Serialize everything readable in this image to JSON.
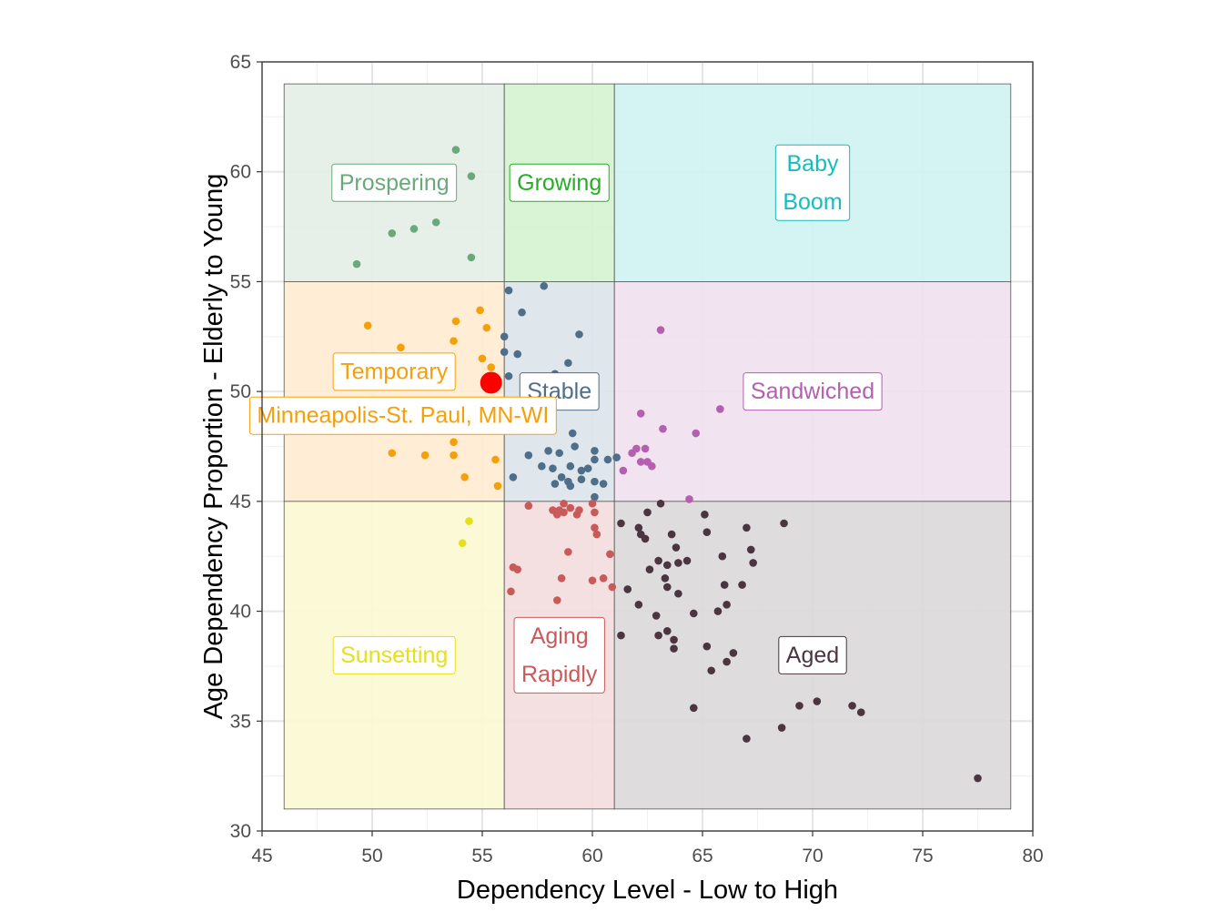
{
  "chart_data": {
    "type": "scatter",
    "title": "",
    "xlabel": "Dependency Level - Low to High",
    "ylabel": "Age Dependency Proportion - Elderly to Young",
    "xlim": [
      45,
      80
    ],
    "ylim": [
      30,
      65
    ],
    "xticks": [
      "45",
      "50",
      "55",
      "60",
      "65",
      "70",
      "75",
      "80"
    ],
    "yticks": [
      "30",
      "35",
      "40",
      "45",
      "50",
      "55",
      "60",
      "65"
    ],
    "grid": true,
    "legend": "none",
    "regions": [
      {
        "name": "Prospering",
        "label_lines": [
          "Prospering"
        ],
        "x0": 46,
        "x1": 56,
        "y0": 55,
        "y1": 64,
        "fill": "#e3ede5",
        "color": "#6aaa7a",
        "label_x": 51,
        "label_y": 59.5
      },
      {
        "name": "Growing",
        "label_lines": [
          "Growing"
        ],
        "x0": 56,
        "x1": 61,
        "y0": 55,
        "y1": 64,
        "fill": "#d5f2d0",
        "color": "#22b022",
        "label_x": 58.5,
        "label_y": 59.5
      },
      {
        "name": "Baby Boom",
        "label_lines": [
          "Baby",
          "Boom"
        ],
        "x0": 61,
        "x1": 79,
        "y0": 55,
        "y1": 64,
        "fill": "#cff3f2",
        "color": "#16bdbf",
        "label_x": 70,
        "label_y": 59.5
      },
      {
        "name": "Temporary",
        "label_lines": [
          "Temporary"
        ],
        "x0": 46,
        "x1": 56,
        "y0": 45,
        "y1": 55,
        "fill": "#ffecd0",
        "color": "#f5a00a",
        "label_x": 51,
        "label_y": 50.9
      },
      {
        "name": "Stable",
        "label_lines": [
          "Stable"
        ],
        "x0": 56,
        "x1": 61,
        "y0": 45,
        "y1": 55,
        "fill": "#dde4ea",
        "color": "#4e6e8a",
        "label_x": 58.5,
        "label_y": 50
      },
      {
        "name": "Sandwiched",
        "label_lines": [
          "Sandwiched"
        ],
        "x0": 61,
        "x1": 79,
        "y0": 45,
        "y1": 55,
        "fill": "#f1e0ef",
        "color": "#b45fb0",
        "label_x": 70,
        "label_y": 50
      },
      {
        "name": "Sunsetting",
        "label_lines": [
          "Sunsetting"
        ],
        "x0": 46,
        "x1": 56,
        "y0": 31,
        "y1": 45,
        "fill": "#fcf9d2",
        "color": "#e6df1a",
        "label_x": 51,
        "label_y": 38
      },
      {
        "name": "Aging Rapidly",
        "label_lines": [
          "Aging",
          "Rapidly"
        ],
        "x0": 56,
        "x1": 61,
        "y0": 31,
        "y1": 45,
        "fill": "#f3dddd",
        "color": "#c95a5a",
        "label_x": 58.5,
        "label_y": 38
      },
      {
        "name": "Aged",
        "label_lines": [
          "Aged"
        ],
        "x0": 61,
        "x1": 79,
        "y0": 31,
        "y1": 45,
        "fill": "#dcd8d9",
        "color": "#4a3540",
        "label_x": 70,
        "label_y": 38
      }
    ],
    "series": [
      {
        "name": "Prospering",
        "color": "#6aaa7a",
        "points": [
          [
            53.8,
            61
          ],
          [
            54.5,
            59.8
          ],
          [
            50.9,
            57.2
          ],
          [
            51.9,
            57.4
          ],
          [
            52.9,
            57.7
          ],
          [
            54.5,
            56.1
          ],
          [
            49.3,
            55.8
          ]
        ]
      },
      {
        "name": "Temporary",
        "color": "#f5a00a",
        "points": [
          [
            49.8,
            53
          ],
          [
            53.8,
            53.2
          ],
          [
            54.9,
            53.7
          ],
          [
            55.2,
            52.9
          ],
          [
            53.7,
            52.3
          ],
          [
            51.3,
            52
          ],
          [
            55.0,
            51.5
          ],
          [
            55.4,
            51.1
          ],
          [
            53.6,
            48.3
          ],
          [
            53.7,
            47.7
          ],
          [
            50.9,
            47.2
          ],
          [
            52.4,
            47.1
          ],
          [
            53.7,
            47.1
          ],
          [
            55.6,
            46.9
          ],
          [
            54.2,
            46.1
          ],
          [
            55.7,
            45.7
          ]
        ]
      },
      {
        "name": "Stable",
        "color": "#4e6e8a",
        "points": [
          [
            56.2,
            54.6
          ],
          [
            57.8,
            54.8
          ],
          [
            56.8,
            53.6
          ],
          [
            56.0,
            52.5
          ],
          [
            59.4,
            52.6
          ],
          [
            56.0,
            51.8
          ],
          [
            56.6,
            51.7
          ],
          [
            58.9,
            51.3
          ],
          [
            56.2,
            50.7
          ],
          [
            58.3,
            50.8
          ],
          [
            59.1,
            48.1
          ],
          [
            58.0,
            47.3
          ],
          [
            59.2,
            47.5
          ],
          [
            60.1,
            47.3
          ],
          [
            57.1,
            47.1
          ],
          [
            57.7,
            46.6
          ],
          [
            58.5,
            47.2
          ],
          [
            59.8,
            46.5
          ],
          [
            60.1,
            46.9
          ],
          [
            60.7,
            46.9
          ],
          [
            61.1,
            47.0
          ],
          [
            58.2,
            46.5
          ],
          [
            59.0,
            46.6
          ],
          [
            59.5,
            46.4
          ],
          [
            56.4,
            46.1
          ],
          [
            58.6,
            46.1
          ],
          [
            58.9,
            45.9
          ],
          [
            59.5,
            46.0
          ],
          [
            58.3,
            45.8
          ],
          [
            59.0,
            45.7
          ],
          [
            60.1,
            45.9
          ],
          [
            60.1,
            45.2
          ],
          [
            60.5,
            45.8
          ]
        ]
      },
      {
        "name": "Sandwiched",
        "color": "#b45fb0",
        "points": [
          [
            63.1,
            52.8
          ],
          [
            62.2,
            49.0
          ],
          [
            63.2,
            48.3
          ],
          [
            64.7,
            48.1
          ],
          [
            65.8,
            49.2
          ],
          [
            62.0,
            47.4
          ],
          [
            62.4,
            47.4
          ],
          [
            61.8,
            47.2
          ],
          [
            62.2,
            46.8
          ],
          [
            62.7,
            46.6
          ],
          [
            64.4,
            45.1
          ],
          [
            61.4,
            46.4
          ],
          [
            62.5,
            46.8
          ]
        ]
      },
      {
        "name": "Sunsetting",
        "color": "#e6df1a",
        "points": [
          [
            54.4,
            44.1
          ],
          [
            54.1,
            43.1
          ]
        ]
      },
      {
        "name": "Aging Rapidly",
        "color": "#c95a5a",
        "points": [
          [
            57.1,
            44.8
          ],
          [
            58.2,
            44.6
          ],
          [
            58.5,
            44.6
          ],
          [
            58.7,
            44.9
          ],
          [
            59.0,
            44.7
          ],
          [
            59.4,
            44.6
          ],
          [
            60.0,
            44.9
          ],
          [
            60.1,
            44.5
          ],
          [
            58.4,
            44.4
          ],
          [
            58.7,
            44.5
          ],
          [
            59.3,
            44.4
          ],
          [
            60.1,
            43.8
          ],
          [
            60.2,
            43.5
          ],
          [
            56.4,
            42.0
          ],
          [
            56.6,
            41.9
          ],
          [
            58.9,
            42.7
          ],
          [
            60.8,
            42.6
          ],
          [
            60.9,
            41.1
          ],
          [
            58.6,
            41.5
          ],
          [
            60.0,
            41.4
          ],
          [
            60.5,
            41.5
          ],
          [
            56.3,
            40.9
          ],
          [
            58.4,
            40.5
          ]
        ]
      },
      {
        "name": "Aged",
        "color": "#4a3540",
        "points": [
          [
            63.1,
            44.9
          ],
          [
            62.5,
            44.5
          ],
          [
            61.3,
            44.0
          ],
          [
            62.1,
            43.8
          ],
          [
            62.2,
            43.5
          ],
          [
            62.4,
            43.3
          ],
          [
            63.6,
            43.5
          ],
          [
            65.1,
            44.4
          ],
          [
            65.2,
            43.6
          ],
          [
            67.0,
            43.8
          ],
          [
            68.7,
            44.0
          ],
          [
            62.6,
            41.9
          ],
          [
            63.0,
            42.3
          ],
          [
            63.4,
            42.1
          ],
          [
            63.9,
            42.2
          ],
          [
            64.3,
            42.3
          ],
          [
            65.9,
            42.5
          ],
          [
            67.2,
            42.8
          ],
          [
            67.3,
            42.2
          ],
          [
            63.8,
            42.9
          ],
          [
            61.6,
            41.0
          ],
          [
            62.1,
            40.3
          ],
          [
            63.3,
            41.5
          ],
          [
            63.4,
            41.1
          ],
          [
            63.9,
            40.8
          ],
          [
            64.6,
            39.9
          ],
          [
            65.7,
            40.0
          ],
          [
            66.1,
            40.3
          ],
          [
            66.0,
            41.2
          ],
          [
            66.8,
            41.2
          ],
          [
            62.9,
            39.8
          ],
          [
            63.0,
            38.9
          ],
          [
            63.4,
            39.1
          ],
          [
            63.7,
            38.7
          ],
          [
            61.3,
            38.9
          ],
          [
            63.7,
            38.3
          ],
          [
            65.2,
            38.4
          ],
          [
            66.1,
            37.7
          ],
          [
            66.4,
            38.1
          ],
          [
            65.4,
            37.3
          ],
          [
            64.6,
            35.6
          ],
          [
            69.4,
            35.7
          ],
          [
            70.2,
            35.9
          ],
          [
            71.8,
            35.7
          ],
          [
            72.2,
            35.4
          ],
          [
            68.6,
            34.7
          ],
          [
            67.0,
            34.2
          ],
          [
            77.5,
            32.4
          ]
        ]
      }
    ],
    "highlight": {
      "label": "Minneapolis-St. Paul, MN-WI",
      "x": 55.4,
      "y": 50.4,
      "color": "#ff0000",
      "label_color": "#f5a00a",
      "label_x": 51.4,
      "label_y": 48.9
    }
  }
}
